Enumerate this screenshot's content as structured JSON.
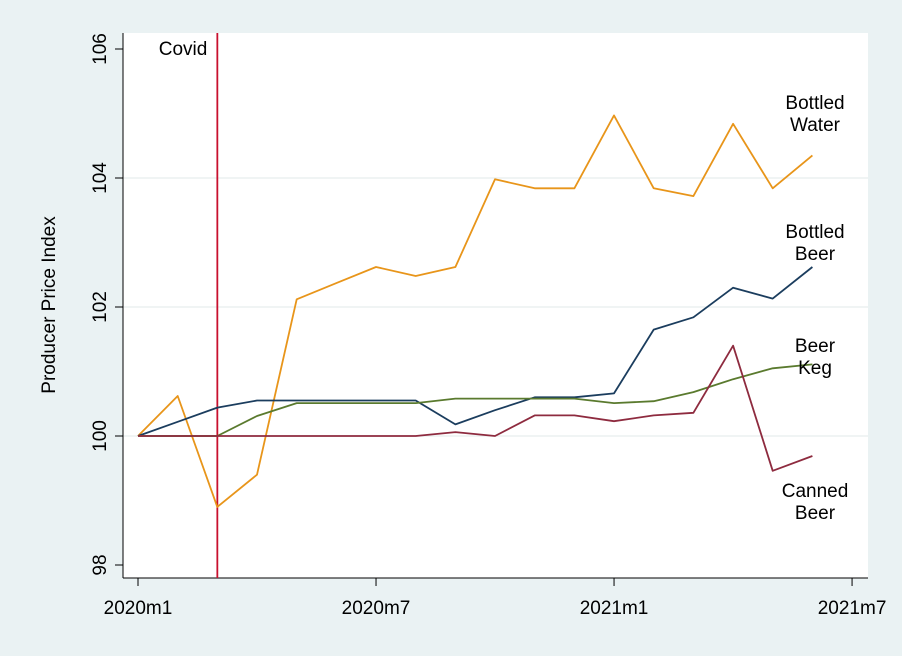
{
  "chart_data": {
    "type": "line",
    "title": "",
    "xlabel": "",
    "ylabel": "Producer Price Index",
    "ylim": [
      98,
      106
    ],
    "yticks": [
      98,
      100,
      102,
      104,
      106
    ],
    "xlim": [
      "2020m1",
      "2021m7"
    ],
    "xticks": [
      "2020m1",
      "2020m7",
      "2021m1",
      "2021m7"
    ],
    "grid": "horizontal",
    "x": [
      "2020m1",
      "2020m2",
      "2020m3",
      "2020m4",
      "2020m5",
      "2020m6",
      "2020m7",
      "2020m8",
      "2020m9",
      "2020m10",
      "2020m11",
      "2020m12",
      "2021m1",
      "2021m2",
      "2021m3",
      "2021m4",
      "2021m5",
      "2021m6"
    ],
    "series": [
      {
        "name": "Bottled Water",
        "label_lines": [
          "Bottled",
          "Water"
        ],
        "color": "#e8951a",
        "values": [
          100.0,
          100.62,
          98.9,
          99.4,
          102.12,
          102.37,
          102.62,
          102.48,
          102.62,
          103.98,
          103.84,
          103.84,
          104.97,
          103.84,
          103.72,
          104.84,
          103.84,
          104.35
        ]
      },
      {
        "name": "Bottled Beer",
        "label_lines": [
          "Bottled",
          "Beer"
        ],
        "color": "#1b3d5e",
        "values": [
          100.0,
          100.22,
          100.44,
          100.55,
          100.55,
          100.55,
          100.55,
          100.55,
          100.18,
          100.4,
          100.6,
          100.6,
          100.66,
          101.65,
          101.84,
          102.3,
          102.13,
          102.62
        ]
      },
      {
        "name": "Beer Keg",
        "label_lines": [
          "Beer",
          "Keg"
        ],
        "color": "#5a7a2e",
        "values": [
          100.0,
          100.0,
          100.0,
          100.31,
          100.51,
          100.51,
          100.51,
          100.51,
          100.58,
          100.58,
          100.58,
          100.58,
          100.51,
          100.54,
          100.68,
          100.88,
          101.05,
          101.11
        ]
      },
      {
        "name": "Canned Beer",
        "label_lines": [
          "Canned",
          "Beer"
        ],
        "color": "#8e2b3f",
        "values": [
          100.0,
          100.0,
          100.0,
          100.0,
          100.0,
          100.0,
          100.0,
          100.0,
          100.06,
          100.0,
          100.32,
          100.32,
          100.23,
          100.32,
          100.36,
          101.4,
          99.46,
          99.69
        ]
      }
    ],
    "annotations": [
      {
        "text": "Covid",
        "x": "2020m3",
        "color": "#c8102e"
      }
    ]
  }
}
